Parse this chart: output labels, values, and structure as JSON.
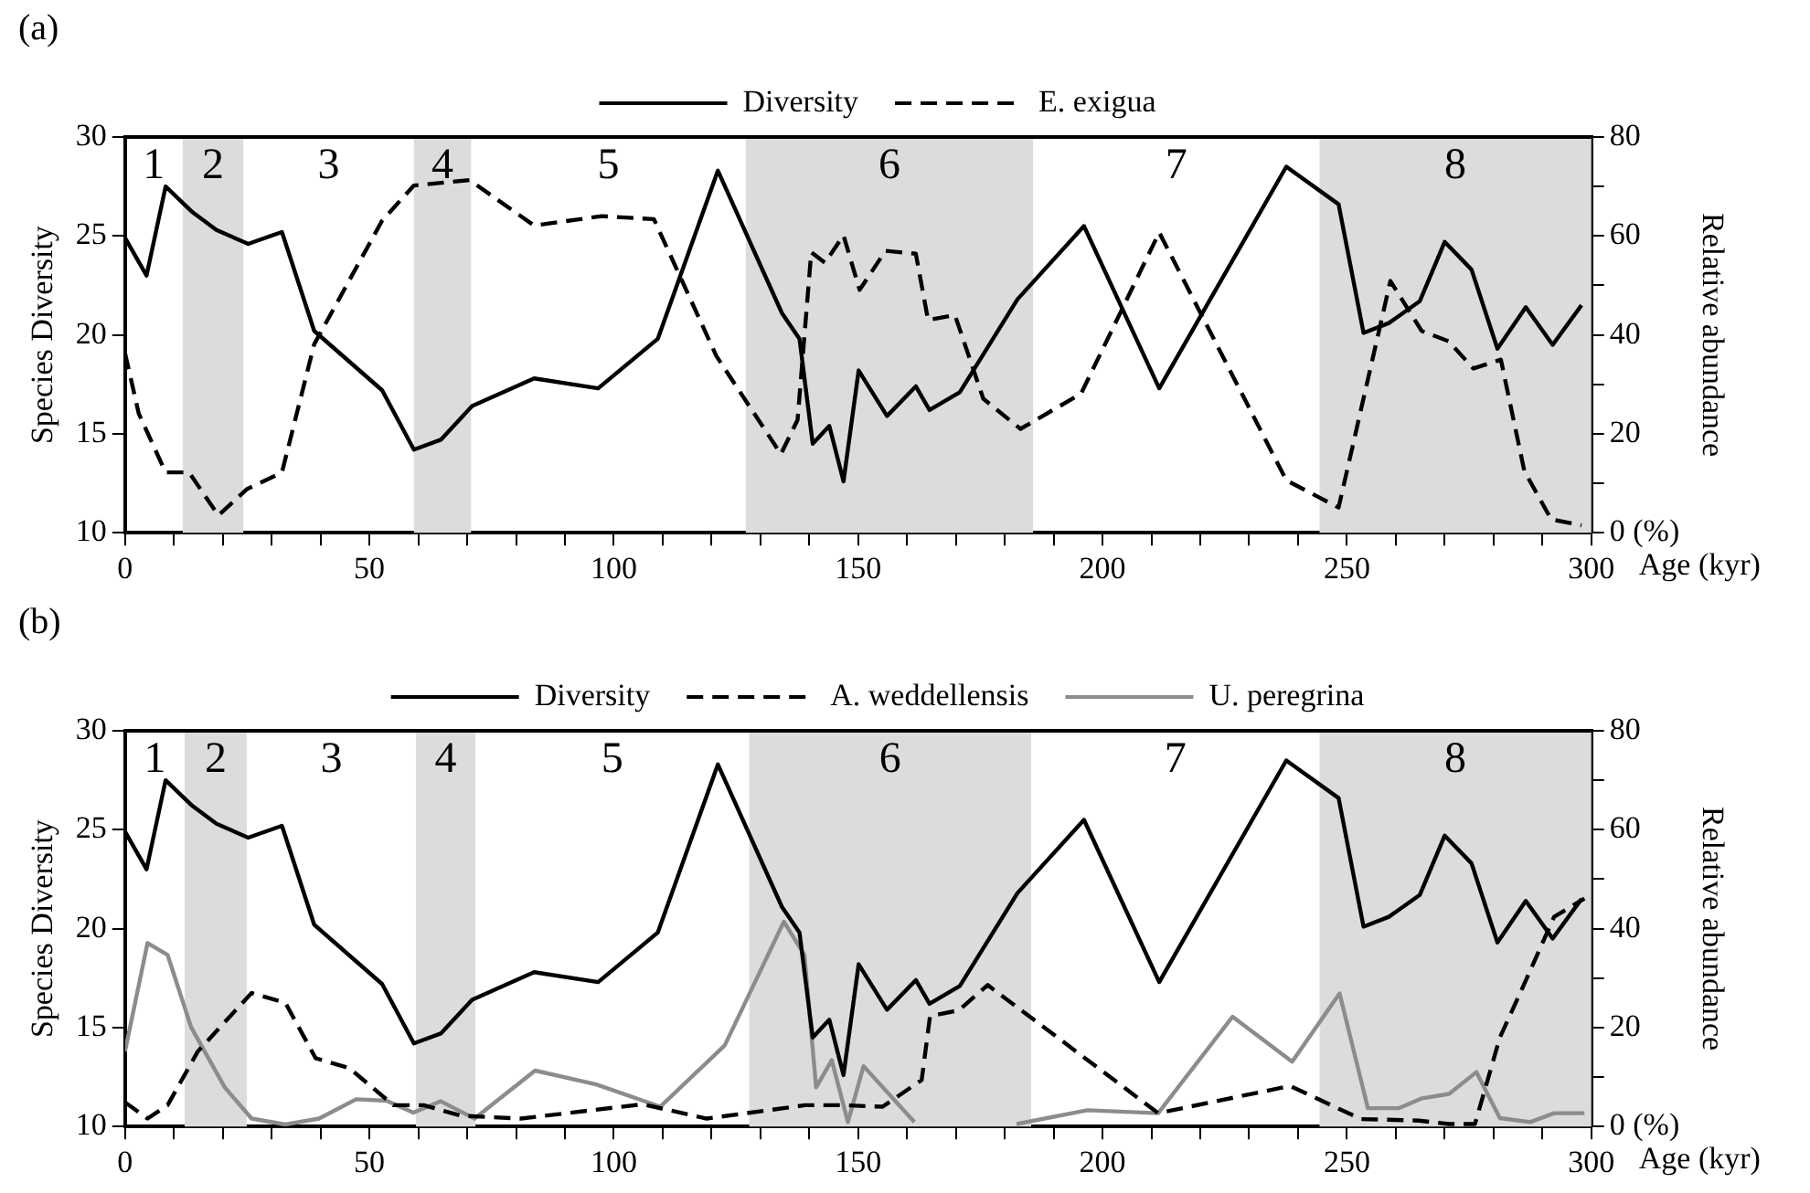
{
  "chart_data": [
    {
      "type": "line",
      "title": "(a)",
      "xlabel": "Age (kyr)",
      "ylabel": "Species Diversity",
      "y2label": "Relative abundance",
      "xlim": [
        0,
        300
      ],
      "xticks": [
        0,
        {
          "value": 10,
          "label": null
        },
        {
          "value": 20,
          "label": null
        },
        {
          "value": 30,
          "label": null
        },
        {
          "value": 40,
          "label": null
        },
        50,
        {
          "value": 60,
          "label": null
        },
        {
          "value": 70,
          "label": null
        },
        {
          "value": 80,
          "label": null
        },
        {
          "value": 90,
          "label": null
        },
        100,
        {
          "value": 110,
          "label": null
        },
        {
          "value": 120,
          "label": null
        },
        {
          "value": 130,
          "label": null
        },
        {
          "value": 140,
          "label": null
        },
        150,
        {
          "value": 160,
          "label": null
        },
        {
          "value": 170,
          "label": null
        },
        {
          "value": 180,
          "label": null
        },
        {
          "value": 190,
          "label": null
        },
        200,
        {
          "value": 210,
          "label": null
        },
        {
          "value": 220,
          "label": null
        },
        {
          "value": 230,
          "label": null
        },
        {
          "value": 240,
          "label": null
        },
        250,
        {
          "value": 260,
          "label": null
        },
        {
          "value": 270,
          "label": null
        },
        {
          "value": 280,
          "label": null
        },
        {
          "value": 290,
          "label": null
        },
        300
      ],
      "ylim": [
        10,
        30
      ],
      "yticks": [
        10,
        15,
        20,
        25,
        30
      ],
      "y2lim": [
        0,
        80
      ],
      "y2ticks": [
        {
          "value": 0,
          "label": "0 (%)"
        },
        {
          "value": 10,
          "label": null
        },
        20,
        {
          "value": 30,
          "label": null
        },
        40,
        {
          "value": 50,
          "label": null
        },
        60,
        {
          "value": 70,
          "label": null
        },
        80
      ],
      "grid": false,
      "legend": "top",
      "marker": "none",
      "bands": [
        {
          "axis": "x",
          "from": 11.8,
          "to": 24.2,
          "color": "#dcdcdc",
          "label": "2"
        },
        {
          "axis": "x",
          "from": 59.1,
          "to": 70.8,
          "color": "#dcdcdc",
          "label": "4"
        },
        {
          "axis": "x",
          "from": 127,
          "to": 185.8,
          "color": "#dcdcdc",
          "label": "6"
        },
        {
          "axis": "x",
          "from": 244.4,
          "to": 300,
          "color": "#dcdcdc",
          "label": "8"
        }
      ],
      "annotations": [
        "1",
        "3",
        "5",
        "7"
      ],
      "series": [
        {
          "name": "Diversity",
          "color": "#000000",
          "line_style": "solid",
          "x": [
            0,
            4.4,
            8.3,
            13.8,
            18.7,
            25.2,
            32.1,
            38.7,
            52.6,
            59.1,
            64.6,
            71,
            83.7,
            96.8,
            109,
            121.3,
            134.4,
            138,
            140.7,
            144.1,
            147,
            150.1,
            155.9,
            161.8,
            164.6,
            170.8,
            182.6,
            196.2,
            211.6,
            237.6,
            248.3,
            253.4,
            258.6,
            264.9,
            270,
            275.5,
            280.8,
            286.6,
            292.1,
            298
          ],
          "values": [
            24.9,
            23,
            27.5,
            26.2,
            25.3,
            24.6,
            25.2,
            20.2,
            17.2,
            14.2,
            14.7,
            16.4,
            17.8,
            17.3,
            19.8,
            28.3,
            21.1,
            19.8,
            14.5,
            15.4,
            12.6,
            18.2,
            15.9,
            17.4,
            16.2,
            17.1,
            21.8,
            25.5,
            17.3,
            28.5,
            26.6,
            20.1,
            20.6,
            21.7,
            24.7,
            23.3,
            19.3,
            21.4,
            19.5,
            21.5
          ]
        },
        {
          "name": "E. exigua",
          "color": "#000000",
          "line_style": "dashed",
          "axis": "y2",
          "x": [
            0,
            2.8,
            8.3,
            13.1,
            19.1,
            24.9,
            32.1,
            38.7,
            52.6,
            59.1,
            70.5,
            83.7,
            97.5,
            108.2,
            121,
            134.2,
            137.6,
            140.4,
            143.2,
            147,
            150.3,
            155.6,
            161.8,
            164.3,
            169.8,
            175.6,
            183.2,
            195.6,
            211.6,
            237.6,
            248.3,
            258.9,
            265.3,
            270.8,
            275.9,
            281.5,
            286.3,
            291.8,
            298
          ],
          "values": [
            36.3,
            24.1,
            12.2,
            12.2,
            3.5,
            8.8,
            12.2,
            38.1,
            63.1,
            70.2,
            71.3,
            62.1,
            64,
            63.4,
            35.7,
            15.9,
            22.8,
            56.7,
            54.6,
            60.1,
            49.1,
            57,
            56.4,
            43,
            44,
            27.1,
            21,
            28.1,
            60.7,
            10.6,
            5.1,
            50.9,
            40.8,
            38.7,
            33.2,
            35,
            12.5,
            2.7,
            1.5
          ]
        }
      ]
    },
    {
      "type": "line",
      "title": "(b)",
      "xlabel": "Age (kyr)",
      "ylabel": "Species Diversity",
      "y2label": "Relative abundance",
      "xlim": [
        0,
        300
      ],
      "xticks": [
        0,
        {
          "value": 10,
          "label": null
        },
        {
          "value": 20,
          "label": null
        },
        {
          "value": 30,
          "label": null
        },
        {
          "value": 40,
          "label": null
        },
        50,
        {
          "value": 60,
          "label": null
        },
        {
          "value": 70,
          "label": null
        },
        {
          "value": 80,
          "label": null
        },
        {
          "value": 90,
          "label": null
        },
        100,
        {
          "value": 110,
          "label": null
        },
        {
          "value": 120,
          "label": null
        },
        {
          "value": 130,
          "label": null
        },
        {
          "value": 140,
          "label": null
        },
        150,
        {
          "value": 160,
          "label": null
        },
        {
          "value": 170,
          "label": null
        },
        {
          "value": 180,
          "label": null
        },
        {
          "value": 190,
          "label": null
        },
        200,
        {
          "value": 210,
          "label": null
        },
        {
          "value": 220,
          "label": null
        },
        {
          "value": 230,
          "label": null
        },
        {
          "value": 240,
          "label": null
        },
        250,
        {
          "value": 260,
          "label": null
        },
        {
          "value": 270,
          "label": null
        },
        {
          "value": 280,
          "label": null
        },
        {
          "value": 290,
          "label": null
        },
        300
      ],
      "ylim": [
        10,
        30
      ],
      "yticks": [
        10,
        15,
        20,
        25,
        30
      ],
      "y2lim": [
        0,
        80
      ],
      "y2ticks": [
        {
          "value": 0,
          "label": "0 (%)"
        },
        {
          "value": 10,
          "label": null
        },
        20,
        {
          "value": 30,
          "label": null
        },
        40,
        {
          "value": 50,
          "label": null
        },
        60,
        {
          "value": 70,
          "label": null
        },
        80
      ],
      "grid": false,
      "legend": "top",
      "marker": "none",
      "bands": [
        {
          "axis": "x",
          "from": 12.2,
          "to": 24.9,
          "color": "#dcdcdc",
          "label": "2"
        },
        {
          "axis": "x",
          "from": 59.5,
          "to": 71.7,
          "color": "#dcdcdc",
          "label": "4"
        },
        {
          "axis": "x",
          "from": 127.7,
          "to": 185.4,
          "color": "#dcdcdc",
          "label": "6"
        },
        {
          "axis": "x",
          "from": 244.4,
          "to": 300,
          "color": "#dcdcdc",
          "label": "8"
        }
      ],
      "annotations": [
        "1",
        "3",
        "5",
        "7"
      ],
      "series": [
        {
          "name": "Diversity",
          "color": "#000000",
          "line_style": "solid",
          "x": [
            0,
            4.4,
            8.3,
            13.8,
            18.7,
            25.2,
            32.1,
            38.7,
            52.6,
            59.1,
            64.6,
            71,
            83.7,
            96.8,
            109,
            121.3,
            134.4,
            138,
            140.7,
            144.1,
            147,
            150.1,
            155.9,
            161.8,
            164.6,
            170.8,
            182.6,
            196.2,
            211.6,
            237.6,
            248.3,
            253.4,
            258.6,
            264.9,
            270,
            275.5,
            280.8,
            286.6,
            292.1,
            298
          ],
          "values": [
            24.9,
            23,
            27.5,
            26.2,
            25.3,
            24.6,
            25.2,
            20.2,
            17.2,
            14.2,
            14.7,
            16.4,
            17.8,
            17.3,
            19.8,
            28.3,
            21.1,
            19.8,
            14.5,
            15.4,
            12.6,
            18.2,
            15.9,
            17.4,
            16.2,
            17.1,
            21.8,
            25.5,
            17.3,
            28.5,
            26.6,
            20.1,
            20.6,
            21.7,
            24.7,
            23.3,
            19.3,
            21.4,
            19.5,
            21.5
          ]
        },
        {
          "name": "A. weddellensis",
          "color": "#000000",
          "line_style": "dashed",
          "axis": "y2",
          "x": [
            0,
            4.6,
            8.7,
            14.9,
            25.9,
            32.8,
            39,
            45.9,
            54.9,
            61.1,
            68.6,
            81,
            105.9,
            119,
            139.1,
            147,
            155,
            163,
            164.7,
            170.6,
            176.5,
            211.4,
            238.4,
            252.9,
            264.7,
            270.9,
            276.2,
            281.3,
            286.1,
            292.4,
            298.6
          ],
          "values": [
            4.9,
            1.6,
            4.3,
            15.2,
            27,
            25,
            13.8,
            11.8,
            4.3,
            4.3,
            2.2,
            1.6,
            4.5,
            1.6,
            4.3,
            4.3,
            4,
            9.4,
            22.3,
            23.5,
            28.6,
            2.7,
            8.2,
            1.5,
            1.2,
            0.5,
            0.5,
            18,
            28.4,
            42.4,
            46.1
          ]
        },
        {
          "name": "U. peregrina",
          "color": "#8c8c8c",
          "line_style": "solid",
          "axis": "y2",
          "x": [
            0,
            4.6,
            8.7,
            13.5,
            20.4,
            25.9,
            32.8,
            39.7,
            47.3,
            53.5,
            59,
            64.6,
            71.5,
            83.9,
            96.4,
            109.5,
            122.7,
            134.8,
            139,
            141.4,
            144.6,
            147.9,
            151.1,
            161.5,
            172,
            182.4,
            196.9,
            211.4,
            226.6,
            238.8,
            248.5,
            254.3,
            260.6,
            265.4,
            270.9,
            276.5,
            281.3,
            287.5,
            292.4,
            298.6
          ],
          "values": [
            15.2,
            37.1,
            34.7,
            20.1,
            7.9,
            1.6,
            0.4,
            1.6,
            5.5,
            5.2,
            2.8,
            5.1,
            1.6,
            11.3,
            8.5,
            4,
            16.4,
            41.4,
            34.7,
            7.9,
            13.4,
            0.9,
            12.2,
            0.9,
            null,
            0.5,
            3.3,
            2.7,
            22.2,
            13.1,
            26.9,
            3.7,
            3.7,
            5.7,
            6.6,
            11,
            1.7,
            0.9,
            2.7,
            2.7
          ]
        }
      ]
    }
  ]
}
